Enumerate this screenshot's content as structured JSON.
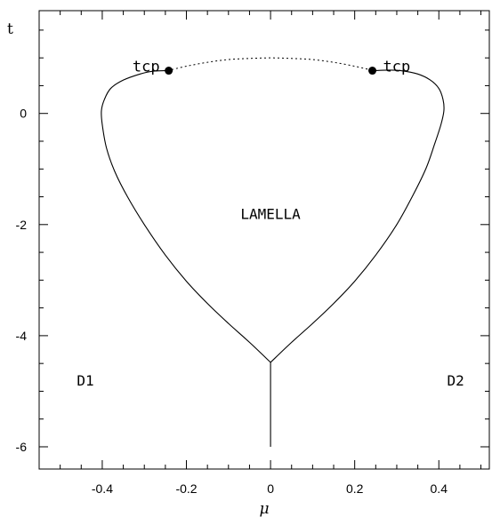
{
  "chart_data": {
    "type": "line",
    "title": "",
    "xlabel": "μ",
    "ylabel": "t",
    "xlim": [
      -0.55,
      0.52
    ],
    "ylim": [
      -6.4,
      1.85
    ],
    "grid": false,
    "x_ticks": [
      -0.4,
      -0.2,
      0,
      0.2,
      0.4
    ],
    "x_tick_labels": [
      "-0.4",
      "-0.2",
      "0",
      "0.2",
      "0.4"
    ],
    "y_ticks": [
      0,
      -2,
      -4,
      -6
    ],
    "y_tick_labels": [
      "0",
      "-2",
      "-4",
      "-6"
    ],
    "series": [
      {
        "style": "solid",
        "x": [
          0.0,
          0.05,
          0.1,
          0.15,
          0.2,
          0.25,
          0.3,
          0.34,
          0.37,
          0.39,
          0.405,
          0.412,
          0.41,
          0.4,
          0.38,
          0.35,
          0.31,
          0.28,
          0.245
        ],
        "y": [
          -4.48,
          -4.12,
          -3.78,
          -3.42,
          -3.02,
          -2.55,
          -2.0,
          -1.45,
          -0.98,
          -0.55,
          -0.2,
          0.05,
          0.25,
          0.45,
          0.6,
          0.71,
          0.77,
          0.78,
          0.77
        ]
      },
      {
        "style": "solid",
        "x": [
          0.0,
          -0.05,
          -0.1,
          -0.15,
          -0.2,
          -0.25,
          -0.3,
          -0.34,
          -0.37,
          -0.39,
          -0.4,
          -0.402,
          -0.395,
          -0.38,
          -0.35,
          -0.31,
          -0.28,
          -0.245
        ],
        "y": [
          -4.48,
          -4.12,
          -3.78,
          -3.42,
          -3.02,
          -2.55,
          -2.0,
          -1.5,
          -1.05,
          -0.62,
          -0.2,
          0.05,
          0.25,
          0.45,
          0.6,
          0.71,
          0.76,
          0.77
        ]
      },
      {
        "style": "dotted",
        "x": [
          -0.245,
          -0.2,
          -0.15,
          -0.1,
          -0.05,
          0.0,
          0.05,
          0.1,
          0.15,
          0.2,
          0.245
        ],
        "y": [
          0.77,
          0.85,
          0.92,
          0.97,
          0.99,
          1.0,
          0.99,
          0.97,
          0.92,
          0.85,
          0.77
        ]
      },
      {
        "style": "solid",
        "x": [
          0.0,
          0.0
        ],
        "y": [
          -4.48,
          -6.0
        ]
      }
    ],
    "points": [
      {
        "label": "tcp",
        "x": -0.242,
        "y": 0.77,
        "label_side": "left"
      },
      {
        "label": "tcp",
        "x": 0.242,
        "y": 0.77,
        "label_side": "right"
      }
    ],
    "annotations": [
      {
        "text": "LAMELLA",
        "x": 0.0,
        "y": -1.9
      },
      {
        "text": "D1",
        "x": -0.44,
        "y": -4.9
      },
      {
        "text": "D2",
        "x": 0.44,
        "y": -4.9
      }
    ]
  }
}
